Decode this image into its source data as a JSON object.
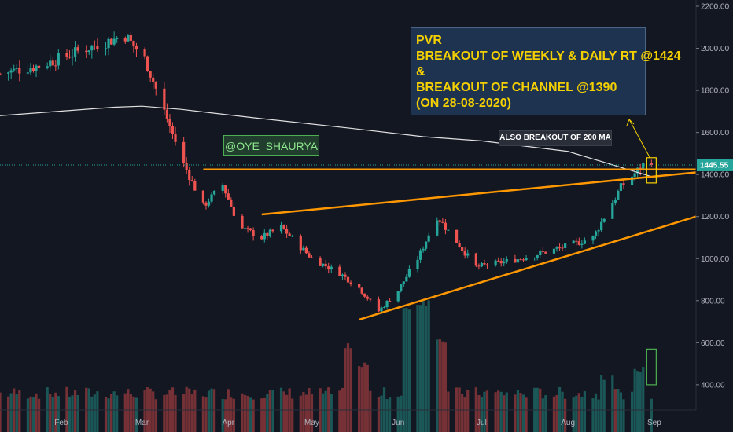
{
  "chart_data": {
    "type": "candlestick",
    "symbol": "PVR",
    "y_axis": {
      "ticks": [
        "2200.00",
        "2000.00",
        "1800.00",
        "1600.00",
        "1400.00",
        "1200.00",
        "1000.00",
        "800.00",
        "600.00",
        "400.00"
      ],
      "tick_values": [
        2200,
        2000,
        1800,
        1600,
        1400,
        1200,
        1000,
        800,
        600,
        400
      ],
      "range": [
        280,
        2230
      ],
      "position": "right"
    },
    "x_axis": {
      "ticks": [
        "Feb",
        "Mar",
        "Apr",
        "May",
        "Jun",
        "Jul",
        "Aug",
        "Sep"
      ],
      "tick_dates": [
        "2020-02-01",
        "2020-03-01",
        "2020-04-01",
        "2020-05-01",
        "2020-06-01",
        "2020-07-01",
        "2020-08-01",
        "2020-09-01"
      ],
      "range": [
        "2020-01-10",
        "2020-09-16"
      ]
    },
    "last_price": "1445.55",
    "last_price_value": 1445.55,
    "series": [
      {
        "name": "",
        "type": "candlestick",
        "up_color": "#26a69a",
        "down_color": "#ef5350",
        "anchor_dates": [
          "2020-01-10",
          "2020-01-25",
          "2020-02-10",
          "2020-02-24",
          "2020-03-02",
          "2020-03-09",
          "2020-03-16",
          "2020-03-23",
          "2020-03-30",
          "2020-04-05",
          "2020-04-13",
          "2020-04-20",
          "2020-05-01",
          "2020-05-11",
          "2020-05-18",
          "2020-05-25",
          "2020-06-01",
          "2020-06-08",
          "2020-06-15",
          "2020-06-29",
          "2020-07-15",
          "2020-08-01",
          "2020-08-10",
          "2020-08-20",
          "2020-08-28"
        ],
        "anchor_closes": [
          1880,
          1920,
          2000,
          2060,
          1950,
          1700,
          1450,
          1250,
          1350,
          1150,
          1100,
          1150,
          1000,
          930,
          860,
          750,
          850,
          1000,
          1200,
          960,
          1000,
          1060,
          1100,
          1340,
          1445.55
        ]
      },
      {
        "name": "200 MA",
        "type": "line",
        "color": "#e0e0e0",
        "dates": [
          "2020-01-10",
          "2020-02-20",
          "2020-03-01",
          "2020-03-15",
          "2020-04-10",
          "2020-05-15",
          "2020-06-10",
          "2020-07-01",
          "2020-08-01",
          "2020-08-31"
        ],
        "values": [
          1680,
          1720,
          1725,
          1710,
          1670,
          1620,
          1580,
          1560,
          1510,
          1390
        ]
      },
      {
        "name": "Volume",
        "type": "bar",
        "color_up": "#26a69a",
        "color_down": "#ef5350",
        "baseline_value": 300,
        "spikes": [
          {
            "date": "2020-05-15",
            "value": 600
          },
          {
            "date": "2020-05-19",
            "value": 520
          },
          {
            "date": "2020-06-05",
            "value": 780
          },
          {
            "date": "2020-06-08",
            "value": 800
          },
          {
            "date": "2020-06-12",
            "value": 810
          },
          {
            "date": "2020-06-16",
            "value": 620
          },
          {
            "date": "2020-08-15",
            "value": 450
          },
          {
            "date": "2020-08-27",
            "value": 490
          }
        ]
      }
    ],
    "lines": [
      {
        "name": "rt-horizontal",
        "color": "#ff9800",
        "points": [
          {
            "x": "2020-03-23",
            "y": 1424
          },
          {
            "x": "2020-09-16",
            "y": 1424
          }
        ]
      },
      {
        "name": "channel-upper",
        "color": "#ff9800",
        "points": [
          {
            "x": "2020-04-13",
            "y": 1210
          },
          {
            "x": "2020-09-16",
            "y": 1410
          }
        ]
      },
      {
        "name": "channel-lower",
        "color": "#ff9800",
        "points": [
          {
            "x": "2020-05-18",
            "y": 710
          },
          {
            "x": "2020-09-16",
            "y": 1200
          }
        ]
      }
    ],
    "grid": false
  },
  "annotations": {
    "handle": "@OYE_SHAURYA",
    "ma_note": "ALSO BREAKOUT OF 200 MA",
    "note_lines": [
      "PVR",
      "BREAKOUT OF WEEKLY & DAILY RT @1424",
      "&",
      "BREAKOUT OF CHANNEL @1390",
      "(ON 28-08-2020)"
    ]
  },
  "colors": {
    "background": "#131722",
    "accent": "#ff9800",
    "note_text": "#f5d000",
    "price_tag": "#26a69a"
  }
}
